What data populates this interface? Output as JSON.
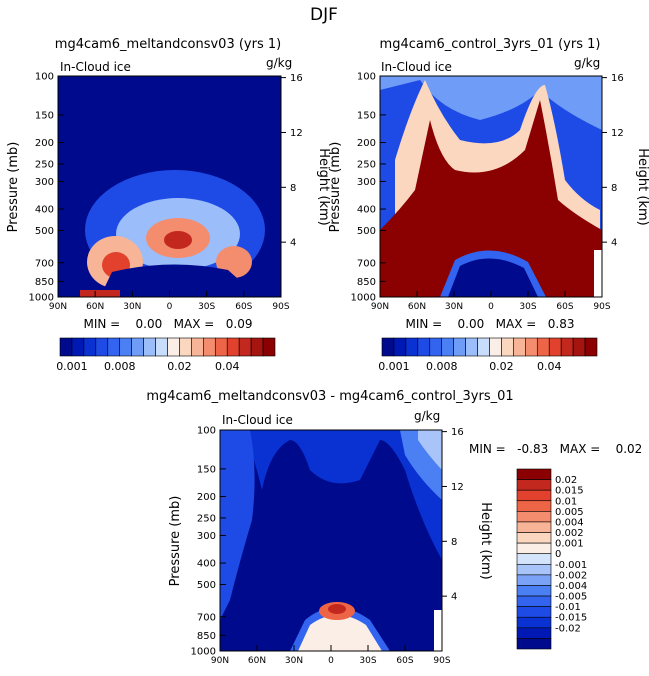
{
  "page_title": "DJF",
  "colors": {
    "scale": [
      "#000a8c",
      "#0019b4",
      "#0a32d2",
      "#1e4be6",
      "#3264f0",
      "#4b80f5",
      "#6e9cf7",
      "#9bbdf9",
      "#c8dcfb",
      "#fbeee6",
      "#fbd7c0",
      "#f8b496",
      "#f48c6e",
      "#ee6446",
      "#e1412d",
      "#c3281e",
      "#a5140f",
      "#8b0000"
    ],
    "diff_scale": [
      "#000a8c",
      "#0019b4",
      "#0a32d2",
      "#1e4be6",
      "#3264f0",
      "#4b80f5",
      "#7aa2f7",
      "#a8c4f9",
      "#d3e4fb",
      "#fbeee6",
      "#fbd7c0",
      "#f8b496",
      "#f48c6e",
      "#ee6446",
      "#e1412d",
      "#c3281e",
      "#8b0000"
    ]
  },
  "chart_data": [
    {
      "type": "heatmap",
      "title": "mg4cam6_meltandconsv03 (yrs 1)",
      "field_label": "In-Cloud ice",
      "units": "g/kg",
      "ylabel": "Pressure (mb)",
      "ylabel_right": "Height (km)",
      "x_ticks": [
        "90N",
        "60N",
        "30N",
        "0",
        "30S",
        "60S",
        "90S"
      ],
      "y_ticks": [
        "100",
        "150",
        "200",
        "250",
        "300",
        "400",
        "500",
        "700",
        "850",
        "1000"
      ],
      "y_ticks_right": [
        "16",
        "12",
        "8",
        "4"
      ],
      "stats": "MIN =    0.00   MAX =   0.09",
      "min": 0.0,
      "max": 0.09,
      "colorbar_labels": [
        "0.001",
        "0.008",
        "0.02",
        "0.04"
      ]
    },
    {
      "type": "heatmap",
      "title": "mg4cam6_control_3yrs_01 (yrs 1)",
      "field_label": "In-Cloud ice",
      "units": "g/kg",
      "ylabel": "Pressure (mb)",
      "ylabel_right": "Height (km)",
      "x_ticks": [
        "90N",
        "60N",
        "30N",
        "0",
        "30S",
        "60S",
        "90S"
      ],
      "y_ticks": [
        "100",
        "150",
        "200",
        "250",
        "300",
        "400",
        "500",
        "700",
        "850",
        "1000"
      ],
      "y_ticks_right": [
        "16",
        "12",
        "8",
        "4"
      ],
      "stats": "MIN =    0.00   MAX =   0.83",
      "min": 0.0,
      "max": 0.83,
      "colorbar_labels": [
        "0.001",
        "0.008",
        "0.02",
        "0.04"
      ]
    },
    {
      "type": "heatmap",
      "title": "mg4cam6_meltandconsv03 - mg4cam6_control_3yrs_01",
      "field_label": "In-Cloud ice",
      "units": "g/kg",
      "ylabel": "Pressure (mb)",
      "ylabel_right": "Height (km)",
      "x_ticks": [
        "90N",
        "60N",
        "30N",
        "0",
        "30S",
        "60S",
        "90S"
      ],
      "y_ticks": [
        "100",
        "150",
        "200",
        "250",
        "300",
        "400",
        "500",
        "700",
        "850",
        "1000"
      ],
      "y_ticks_right": [
        "16",
        "12",
        "8",
        "4"
      ],
      "stats": "MIN =   -0.83   MAX =    0.02",
      "min": -0.83,
      "max": 0.02,
      "colorbar_labels": [
        "0.02",
        "0.015",
        "0.01",
        "0.005",
        "0.004",
        "0.002",
        "0.001",
        "0",
        "-0.001",
        "-0.002",
        "-0.004",
        "-0.005",
        "-0.01",
        "-0.015",
        "-0.02"
      ]
    }
  ]
}
